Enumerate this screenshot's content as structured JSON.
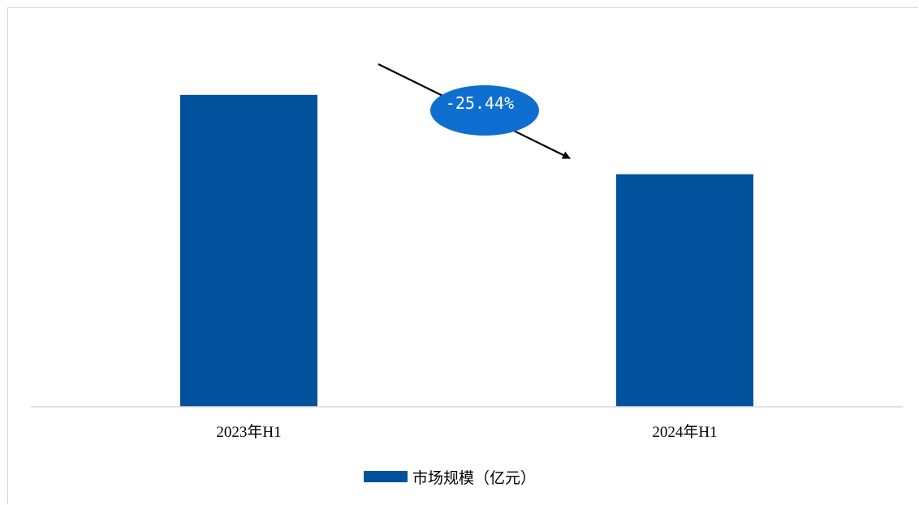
{
  "chart_data": {
    "type": "bar",
    "categories": [
      "2023年H1",
      "2024年H1"
    ],
    "series": [
      {
        "name": "市场规模（亿元）",
        "values": [
          100,
          74.56
        ]
      }
    ],
    "ylim": [
      0,
      120
    ],
    "grid": false,
    "legend_position": "bottom",
    "annotation": {
      "text": "-25.44%",
      "style": "callout-ellipse-with-down-arrow"
    },
    "colors": {
      "bar": "#02519d",
      "callout": "#0f6fd0",
      "axis": "#d9d9d9"
    }
  }
}
